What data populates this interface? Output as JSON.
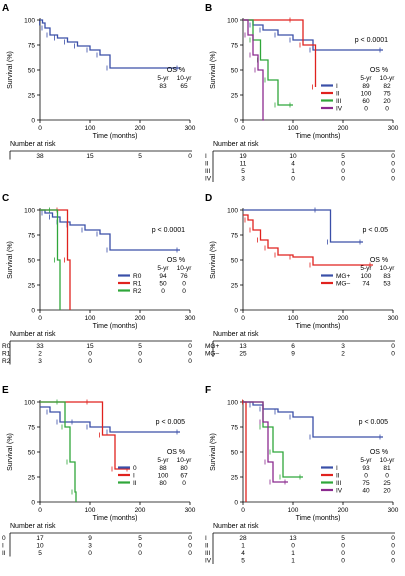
{
  "colors": {
    "blue": "#3a4fa8",
    "red": "#e0221e",
    "green": "#2fa63a",
    "purple": "#8b2a8f",
    "black": "#000000"
  },
  "common": {
    "ylabel": "Survival (%)",
    "xlabel": "Time (months)",
    "risk_label": "Number at risk",
    "os_title": "OS %",
    "os_cols": [
      "5-yr",
      "10-yr"
    ],
    "yticks": [
      "0",
      "25",
      "50",
      "75",
      "100"
    ],
    "xticks": [
      "0",
      "100",
      "200",
      "300"
    ]
  },
  "chart_data": [
    {
      "panel": "A",
      "type": "line",
      "xlim": [
        0,
        300
      ],
      "ylim": [
        0,
        100
      ],
      "pvalue": "",
      "series": [
        {
          "name": "",
          "color": "blue",
          "x": [
            0,
            5,
            10,
            20,
            35,
            55,
            75,
            100,
            120,
            140,
            280
          ],
          "y": [
            100,
            97,
            92,
            85,
            82,
            78,
            74,
            70,
            65,
            52,
            52
          ]
        }
      ],
      "os_rows": [
        {
          "label": "",
          "color": "black",
          "y5": "83",
          "y10": "65"
        }
      ],
      "risk": {
        "times": [
          0,
          100,
          200,
          300
        ],
        "rows": [
          {
            "label": "",
            "values": [
              "38",
              "15",
              "5",
              "0"
            ]
          }
        ]
      }
    },
    {
      "panel": "B",
      "type": "line",
      "xlim": [
        0,
        300
      ],
      "ylim": [
        0,
        100
      ],
      "pvalue": "p < 0.0001",
      "series": [
        {
          "name": "I",
          "color": "blue",
          "x": [
            0,
            20,
            40,
            70,
            100,
            140,
            280
          ],
          "y": [
            100,
            95,
            90,
            85,
            80,
            70,
            70
          ]
        },
        {
          "name": "II",
          "color": "red",
          "x": [
            0,
            100,
            120,
            145
          ],
          "y": [
            100,
            100,
            75,
            33
          ]
        },
        {
          "name": "III",
          "color": "green",
          "x": [
            0,
            20,
            35,
            50,
            70,
            100
          ],
          "y": [
            100,
            80,
            60,
            40,
            15,
            15
          ]
        },
        {
          "name": "IV",
          "color": "purple",
          "x": [
            0,
            10,
            20,
            30,
            40,
            42
          ],
          "y": [
            100,
            85,
            65,
            50,
            0,
            0
          ]
        }
      ],
      "os_rows": [
        {
          "label": "I",
          "color": "blue",
          "y5": "89",
          "y10": "82"
        },
        {
          "label": "II",
          "color": "red",
          "y5": "100",
          "y10": "75"
        },
        {
          "label": "III",
          "color": "green",
          "y5": "60",
          "y10": "20"
        },
        {
          "label": "IV",
          "color": "purple",
          "y5": "0",
          "y10": "0"
        }
      ],
      "risk": {
        "times": [
          0,
          100,
          200,
          300
        ],
        "rows": [
          {
            "label": "I",
            "values": [
              "19",
              "10",
              "5",
              "0"
            ]
          },
          {
            "label": "II",
            "values": [
              "11",
              "4",
              "0",
              "0"
            ]
          },
          {
            "label": "III",
            "values": [
              "5",
              "1",
              "0",
              "0"
            ]
          },
          {
            "label": "IV",
            "values": [
              "3",
              "0",
              "0",
              "0"
            ]
          }
        ]
      }
    },
    {
      "panel": "C",
      "type": "line",
      "xlim": [
        0,
        300
      ],
      "ylim": [
        0,
        100
      ],
      "pvalue": "p < 0.0001",
      "series": [
        {
          "name": "R0",
          "color": "blue",
          "x": [
            0,
            10,
            25,
            40,
            60,
            90,
            120,
            140,
            280
          ],
          "y": [
            100,
            97,
            93,
            88,
            85,
            80,
            76,
            60,
            60
          ]
        },
        {
          "name": "R1",
          "color": "red",
          "x": [
            0,
            40,
            55,
            60
          ],
          "y": [
            100,
            100,
            50,
            0
          ]
        },
        {
          "name": "R2",
          "color": "green",
          "x": [
            0,
            25,
            35,
            40
          ],
          "y": [
            100,
            100,
            50,
            0
          ]
        }
      ],
      "os_rows": [
        {
          "label": "R0",
          "color": "blue",
          "y5": "94",
          "y10": "76"
        },
        {
          "label": "R1",
          "color": "red",
          "y5": "50",
          "y10": "0"
        },
        {
          "label": "R2",
          "color": "green",
          "y5": "0",
          "y10": "0"
        }
      ],
      "risk": {
        "times": [
          0,
          100,
          200,
          300
        ],
        "rows": [
          {
            "label": "R0",
            "values": [
              "33",
              "15",
              "5",
              "0"
            ]
          },
          {
            "label": "R1",
            "values": [
              "2",
              "0",
              "0",
              "0"
            ]
          },
          {
            "label": "R2",
            "values": [
              "3",
              "0",
              "0",
              "0"
            ]
          }
        ]
      }
    },
    {
      "panel": "D",
      "type": "line",
      "xlim": [
        0,
        300
      ],
      "ylim": [
        0,
        100
      ],
      "pvalue": "p < 0.05",
      "series": [
        {
          "name": "MG+",
          "color": "blue",
          "x": [
            0,
            150,
            175,
            240
          ],
          "y": [
            100,
            100,
            68,
            68
          ]
        },
        {
          "name": "MG–",
          "color": "red",
          "x": [
            0,
            10,
            20,
            35,
            50,
            70,
            100,
            140,
            260
          ],
          "y": [
            95,
            90,
            80,
            70,
            62,
            55,
            53,
            45,
            45
          ]
        }
      ],
      "os_rows": [
        {
          "label": "MG+",
          "color": "blue",
          "y5": "100",
          "y10": "83"
        },
        {
          "label": "MG–",
          "color": "red",
          "y5": "74",
          "y10": "53"
        }
      ],
      "risk": {
        "times": [
          0,
          100,
          200,
          300
        ],
        "rows": [
          {
            "label": "MG+",
            "values": [
              "13",
              "6",
              "3",
              "0"
            ]
          },
          {
            "label": "MG–",
            "values": [
              "25",
              "9",
              "2",
              "0"
            ]
          }
        ]
      }
    },
    {
      "panel": "E",
      "type": "line",
      "xlim": [
        0,
        300
      ],
      "ylim": [
        0,
        100
      ],
      "pvalue": "p < 0.005",
      "series": [
        {
          "name": "0",
          "color": "blue",
          "x": [
            0,
            20,
            40,
            70,
            100,
            140,
            280
          ],
          "y": [
            95,
            90,
            80,
            80,
            75,
            70,
            70
          ]
        },
        {
          "name": "I",
          "color": "red",
          "x": [
            0,
            100,
            125,
            150,
            180
          ],
          "y": [
            100,
            100,
            67,
            33,
            33
          ]
        },
        {
          "name": "II",
          "color": "green",
          "x": [
            0,
            40,
            50,
            60,
            70,
            72
          ],
          "y": [
            100,
            100,
            75,
            40,
            10,
            0
          ]
        }
      ],
      "os_rows": [
        {
          "label": "0",
          "color": "blue",
          "y5": "88",
          "y10": "80"
        },
        {
          "label": "I",
          "color": "red",
          "y5": "100",
          "y10": "67"
        },
        {
          "label": "II",
          "color": "green",
          "y5": "80",
          "y10": "0"
        }
      ],
      "risk": {
        "times": [
          0,
          100,
          200,
          300
        ],
        "rows": [
          {
            "label": "0",
            "values": [
              "17",
              "9",
              "5",
              "0"
            ]
          },
          {
            "label": "I",
            "values": [
              "10",
              "3",
              "0",
              "0"
            ]
          },
          {
            "label": "II",
            "values": [
              "5",
              "0",
              "0",
              "0"
            ]
          }
        ]
      }
    },
    {
      "panel": "F",
      "type": "line",
      "xlim": [
        0,
        300
      ],
      "ylim": [
        0,
        100
      ],
      "pvalue": "p < 0.005",
      "series": [
        {
          "name": "I",
          "color": "blue",
          "x": [
            0,
            20,
            40,
            70,
            100,
            140,
            280
          ],
          "y": [
            100,
            97,
            93,
            90,
            85,
            65,
            65
          ]
        },
        {
          "name": "II",
          "color": "red",
          "x": [
            0,
            5,
            6
          ],
          "y": [
            100,
            100,
            0
          ]
        },
        {
          "name": "III",
          "color": "green",
          "x": [
            0,
            40,
            60,
            80,
            120
          ],
          "y": [
            100,
            75,
            50,
            25,
            25
          ]
        },
        {
          "name": "IV",
          "color": "purple",
          "x": [
            0,
            40,
            50,
            60,
            90
          ],
          "y": [
            100,
            80,
            40,
            20,
            20
          ]
        }
      ],
      "os_rows": [
        {
          "label": "I",
          "color": "blue",
          "y5": "93",
          "y10": "81"
        },
        {
          "label": "II",
          "color": "red",
          "y5": "0",
          "y10": "0"
        },
        {
          "label": "III",
          "color": "green",
          "y5": "75",
          "y10": "25"
        },
        {
          "label": "IV",
          "color": "purple",
          "y5": "40",
          "y10": "20"
        }
      ],
      "risk": {
        "times": [
          0,
          100,
          200,
          300
        ],
        "rows": [
          {
            "label": "I",
            "values": [
              "28",
              "13",
              "5",
              "0"
            ]
          },
          {
            "label": "II",
            "values": [
              "1",
              "0",
              "0",
              "0"
            ]
          },
          {
            "label": "III",
            "values": [
              "4",
              "1",
              "0",
              "0"
            ]
          },
          {
            "label": "IV",
            "values": [
              "5",
              "1",
              "0",
              "0"
            ]
          }
        ]
      }
    }
  ]
}
